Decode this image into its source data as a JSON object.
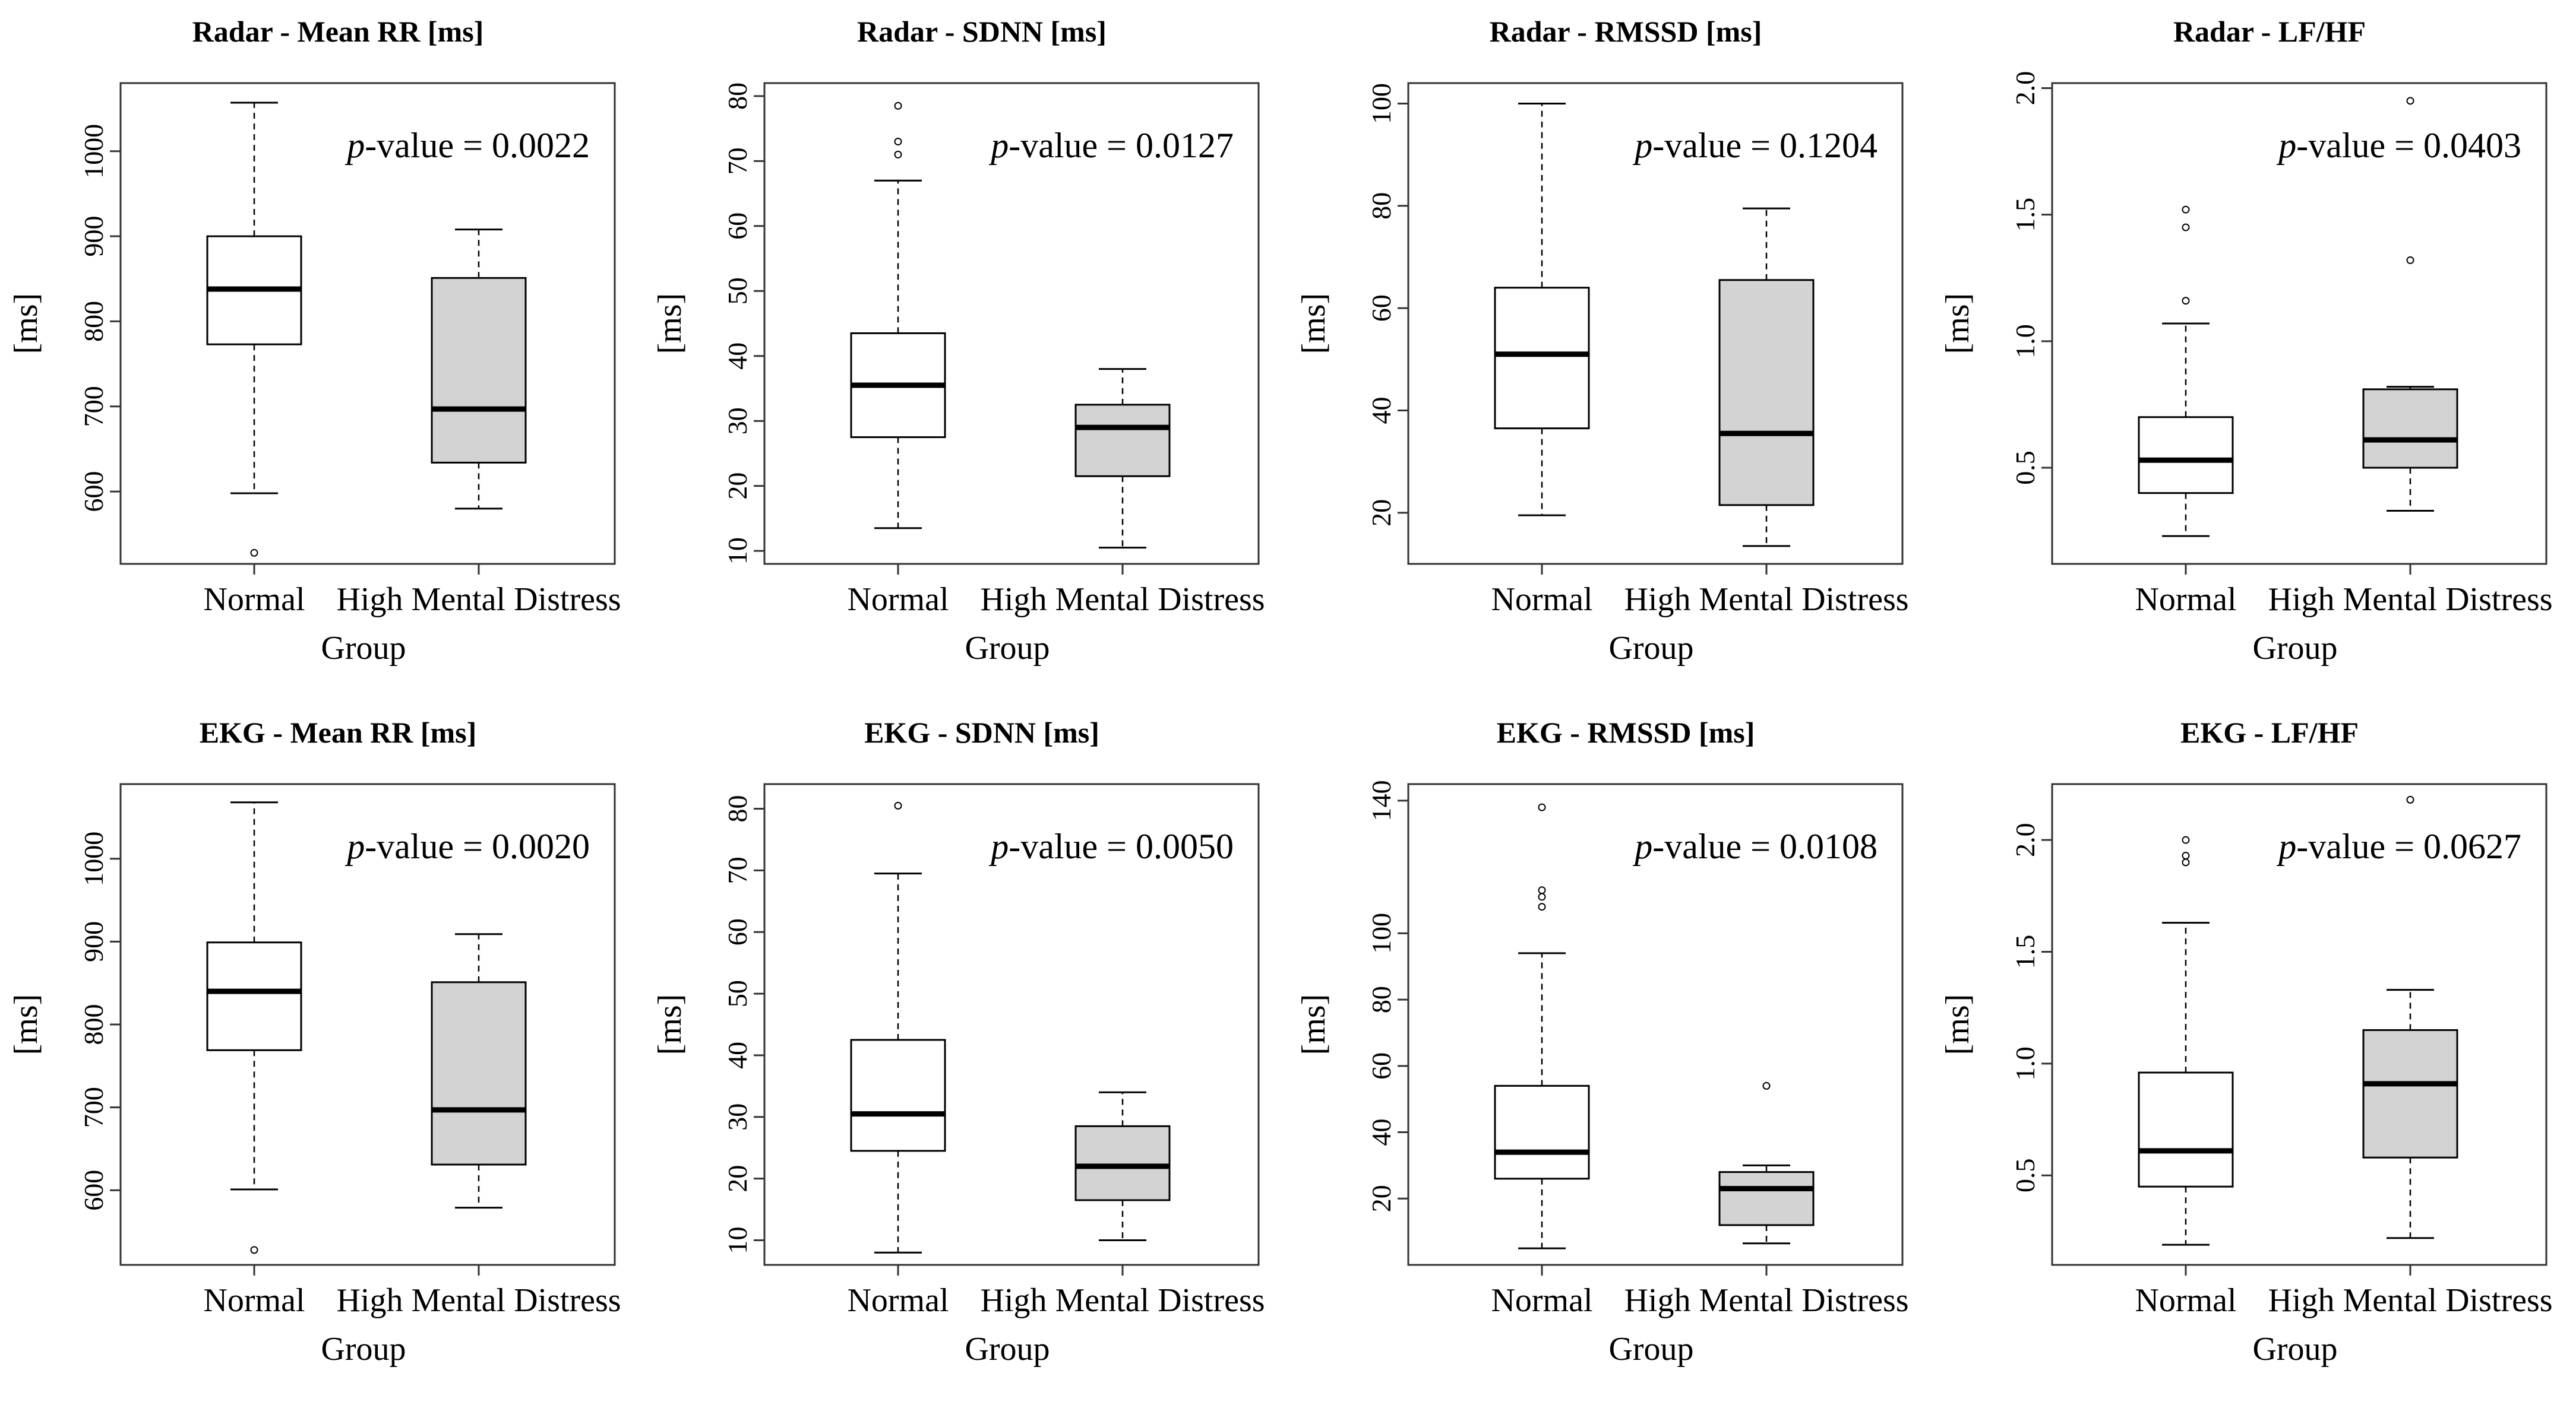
{
  "figure": {
    "xlabel": "Group",
    "ylabel": "[ms]",
    "categories": [
      "Normal",
      "High Mental Distress"
    ],
    "pvalue_prefix": "p",
    "pvalue_suffix": "-value = ",
    "colors": {
      "normal_fill": "#ffffff",
      "distress_fill": "#d3d3d3",
      "line": "#000000",
      "frame": "#333333"
    }
  },
  "chart_data": [
    {
      "type": "boxplot",
      "title": "Radar - Mean RR [ms]",
      "pvalue": "0.0022",
      "ylim": [
        515,
        1080
      ],
      "yticks": [
        600,
        700,
        800,
        900,
        1000
      ],
      "boxes": [
        {
          "group": "Normal",
          "min": 598,
          "q1": 773,
          "median": 838,
          "q3": 900,
          "max": 1057,
          "outliers": [
            528
          ]
        },
        {
          "group": "High Mental Distress",
          "min": 580,
          "q1": 634,
          "median": 697,
          "q3": 851,
          "max": 908,
          "outliers": []
        }
      ]
    },
    {
      "type": "boxplot",
      "title": "Radar - SDNN [ms]",
      "pvalue": "0.0127",
      "ylim": [
        8,
        82
      ],
      "yticks": [
        10,
        20,
        30,
        40,
        50,
        60,
        70,
        80
      ],
      "boxes": [
        {
          "group": "Normal",
          "min": 13.5,
          "q1": 27.5,
          "median": 35.5,
          "q3": 43.5,
          "max": 67,
          "outliers": [
            71,
            73,
            78.5
          ]
        },
        {
          "group": "High Mental Distress",
          "min": 10.5,
          "q1": 21.5,
          "median": 29,
          "q3": 32.5,
          "max": 38,
          "outliers": []
        }
      ]
    },
    {
      "type": "boxplot",
      "title": "Radar - RMSSD [ms]",
      "pvalue": "0.1204",
      "ylim": [
        10,
        104
      ],
      "yticks": [
        20,
        40,
        60,
        80,
        100
      ],
      "boxes": [
        {
          "group": "Normal",
          "min": 19.5,
          "q1": 36.5,
          "median": 51,
          "q3": 64,
          "max": 100,
          "outliers": []
        },
        {
          "group": "High Mental Distress",
          "min": 13.5,
          "q1": 21.5,
          "median": 35.5,
          "q3": 65.5,
          "max": 79.5,
          "outliers": []
        }
      ]
    },
    {
      "type": "boxplot",
      "title": "Radar - LF/HF",
      "pvalue": "0.0403",
      "ylim": [
        0.12,
        2.02
      ],
      "yticks": [
        0.5,
        1.0,
        1.5,
        2.0
      ],
      "boxes": [
        {
          "group": "Normal",
          "min": 0.23,
          "q1": 0.4,
          "median": 0.53,
          "q3": 0.7,
          "max": 1.07,
          "outliers": [
            1.16,
            1.45,
            1.52
          ]
        },
        {
          "group": "High Mental Distress",
          "min": 0.33,
          "q1": 0.5,
          "median": 0.61,
          "q3": 0.81,
          "max": 0.82,
          "outliers": [
            1.32,
            1.95
          ]
        }
      ]
    },
    {
      "type": "boxplot",
      "title": "EKG - Mean RR [ms]",
      "pvalue": "0.0020",
      "ylim": [
        510,
        1090
      ],
      "yticks": [
        600,
        700,
        800,
        900,
        1000
      ],
      "boxes": [
        {
          "group": "Normal",
          "min": 601,
          "q1": 769,
          "median": 840,
          "q3": 899,
          "max": 1068,
          "outliers": [
            528
          ]
        },
        {
          "group": "High Mental Distress",
          "min": 579,
          "q1": 631,
          "median": 697,
          "q3": 851,
          "max": 909,
          "outliers": []
        }
      ]
    },
    {
      "type": "boxplot",
      "title": "EKG - SDNN [ms]",
      "pvalue": "0.0050",
      "ylim": [
        6,
        84
      ],
      "yticks": [
        10,
        20,
        30,
        40,
        50,
        60,
        70,
        80
      ],
      "boxes": [
        {
          "group": "Normal",
          "min": 8,
          "q1": 24.5,
          "median": 30.5,
          "q3": 42.5,
          "max": 69.5,
          "outliers": [
            80.5
          ]
        },
        {
          "group": "High Mental Distress",
          "min": 10,
          "q1": 16.5,
          "median": 22,
          "q3": 28.5,
          "max": 34,
          "outliers": []
        }
      ]
    },
    {
      "type": "boxplot",
      "title": "EKG - RMSSD [ms]",
      "pvalue": "0.0108",
      "ylim": [
        0,
        145
      ],
      "yticks": [
        20,
        40,
        60,
        80,
        100,
        140
      ],
      "boxes": [
        {
          "group": "Normal",
          "min": 5,
          "q1": 26,
          "median": 34,
          "q3": 54,
          "max": 94,
          "outliers": [
            108,
            111,
            113,
            138
          ]
        },
        {
          "group": "High Mental Distress",
          "min": 6.5,
          "q1": 12,
          "median": 23,
          "q3": 28,
          "max": 30,
          "outliers": [
            54
          ]
        }
      ]
    },
    {
      "type": "boxplot",
      "title": "EKG - LF/HF",
      "pvalue": "0.0627",
      "ylim": [
        0.1,
        2.25
      ],
      "yticks": [
        0.5,
        1.0,
        1.5,
        2.0
      ],
      "boxes": [
        {
          "group": "Normal",
          "min": 0.19,
          "q1": 0.45,
          "median": 0.61,
          "q3": 0.96,
          "max": 1.63,
          "outliers": [
            1.9,
            1.93,
            2.0
          ]
        },
        {
          "group": "High Mental Distress",
          "min": 0.22,
          "q1": 0.58,
          "median": 0.91,
          "q3": 1.15,
          "max": 1.33,
          "outliers": [
            2.18
          ]
        }
      ]
    }
  ]
}
